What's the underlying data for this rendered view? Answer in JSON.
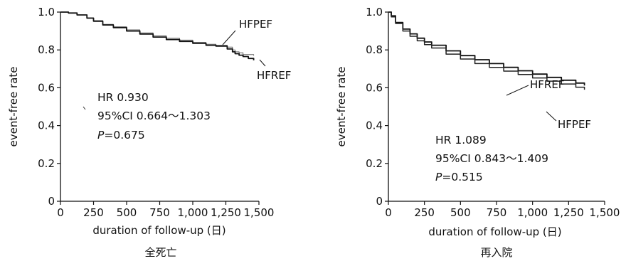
{
  "chart_data": [
    {
      "type": "line",
      "caption": "全死亡",
      "xlabel": "duration of follow-up (日)",
      "ylabel": "event-free rate",
      "xlim": [
        0,
        1500
      ],
      "ylim": [
        0,
        1.0
      ],
      "x_ticks": [
        "0",
        "250",
        "500",
        "750",
        "1,000",
        "1,250",
        "1,500"
      ],
      "y_ticks": [
        "0",
        "0.2",
        "0.4",
        "0.6",
        "0.8",
        "1.0"
      ],
      "grid": false,
      "annotation": {
        "hr": "HR 0.930",
        "ci": "95%CI 0.664～1.303",
        "p_label": "P",
        "p_value": "=0.675"
      },
      "series": [
        {
          "name": "HFPEF",
          "points": [
            [
              0,
              1.0
            ],
            [
              60,
              0.995
            ],
            [
              125,
              0.985
            ],
            [
              200,
              0.97
            ],
            [
              250,
              0.955
            ],
            [
              320,
              0.935
            ],
            [
              400,
              0.922
            ],
            [
              500,
              0.906
            ],
            [
              600,
              0.89
            ],
            [
              700,
              0.875
            ],
            [
              800,
              0.862
            ],
            [
              900,
              0.852
            ],
            [
              1000,
              0.84
            ],
            [
              1100,
              0.83
            ],
            [
              1175,
              0.825
            ],
            [
              1240,
              0.825
            ],
            [
              1260,
              0.815
            ],
            [
              1300,
              0.8
            ],
            [
              1320,
              0.79
            ],
            [
              1350,
              0.785
            ],
            [
              1380,
              0.775
            ],
            [
              1420,
              0.775
            ],
            [
              1460,
              0.77
            ]
          ]
        },
        {
          "name": "HFREF",
          "points": [
            [
              0,
              1.0
            ],
            [
              60,
              0.995
            ],
            [
              125,
              0.985
            ],
            [
              200,
              0.968
            ],
            [
              250,
              0.952
            ],
            [
              320,
              0.932
            ],
            [
              400,
              0.918
            ],
            [
              500,
              0.9
            ],
            [
              600,
              0.884
            ],
            [
              700,
              0.868
            ],
            [
              800,
              0.855
            ],
            [
              900,
              0.845
            ],
            [
              1000,
              0.835
            ],
            [
              1100,
              0.825
            ],
            [
              1175,
              0.82
            ],
            [
              1240,
              0.82
            ],
            [
              1260,
              0.805
            ],
            [
              1300,
              0.79
            ],
            [
              1320,
              0.78
            ],
            [
              1350,
              0.772
            ],
            [
              1380,
              0.765
            ],
            [
              1420,
              0.755
            ],
            [
              1460,
              0.745
            ]
          ]
        }
      ]
    },
    {
      "type": "line",
      "caption": "再入院",
      "xlabel": "duration of follow-up (日)",
      "ylabel": "event-free rate",
      "xlim": [
        0,
        1500
      ],
      "ylim": [
        0,
        1.0
      ],
      "x_ticks": [
        "0",
        "250",
        "500",
        "750",
        "1,000",
        "1,250",
        "1,500"
      ],
      "y_ticks": [
        "0",
        "0.2",
        "0.4",
        "0.6",
        "0.8",
        "1.0"
      ],
      "grid": false,
      "annotation": {
        "hr": "HR 1.089",
        "ci": "95%CI 0.843～1.409",
        "p_label": "P",
        "p_value": "=0.515"
      },
      "series": [
        {
          "name": "HFREF",
          "points": [
            [
              0,
              1.0
            ],
            [
              20,
              0.98
            ],
            [
              50,
              0.945
            ],
            [
              100,
              0.91
            ],
            [
              150,
              0.885
            ],
            [
              200,
              0.862
            ],
            [
              250,
              0.842
            ],
            [
              300,
              0.825
            ],
            [
              400,
              0.795
            ],
            [
              500,
              0.77
            ],
            [
              600,
              0.748
            ],
            [
              700,
              0.728
            ],
            [
              800,
              0.708
            ],
            [
              900,
              0.69
            ],
            [
              1000,
              0.672
            ],
            [
              1100,
              0.655
            ],
            [
              1200,
              0.64
            ],
            [
              1300,
              0.625
            ],
            [
              1360,
              0.612
            ]
          ]
        },
        {
          "name": "HFPEF",
          "points": [
            [
              0,
              1.0
            ],
            [
              20,
              0.975
            ],
            [
              50,
              0.94
            ],
            [
              100,
              0.9
            ],
            [
              150,
              0.872
            ],
            [
              200,
              0.848
            ],
            [
              250,
              0.828
            ],
            [
              300,
              0.81
            ],
            [
              400,
              0.778
            ],
            [
              500,
              0.752
            ],
            [
              600,
              0.728
            ],
            [
              700,
              0.708
            ],
            [
              800,
              0.688
            ],
            [
              900,
              0.67
            ],
            [
              1000,
              0.652
            ],
            [
              1100,
              0.635
            ],
            [
              1200,
              0.62
            ],
            [
              1300,
              0.603
            ],
            [
              1360,
              0.59
            ]
          ]
        }
      ]
    }
  ]
}
